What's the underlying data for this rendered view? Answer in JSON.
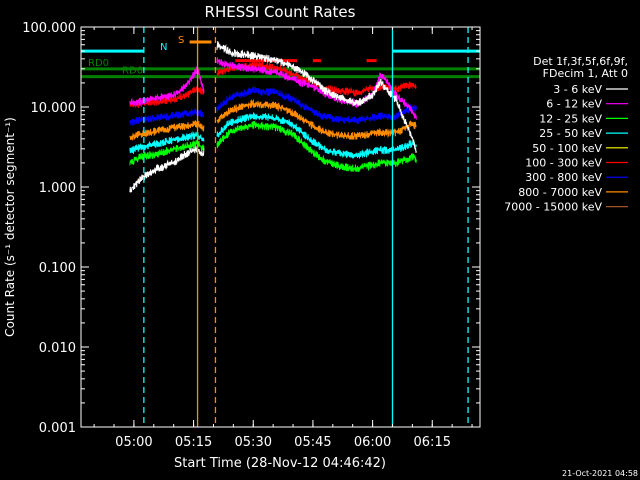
{
  "chart_data": {
    "type": "line",
    "title": "RHESSI Count Rates",
    "xlabel": "Start Time (28-Nov-12 04:46:42)",
    "ylabel": "Count Rate (s⁻¹ detector segment⁻¹)",
    "xlim": [
      "04:46:42",
      "06:27:00"
    ],
    "ylim": [
      0.001,
      100
    ],
    "yscale": "log",
    "xticks": [
      "05:00",
      "05:15",
      "05:30",
      "05:45",
      "06:00",
      "06:15"
    ],
    "yticks": [
      "0.001",
      "0.010",
      "0.100",
      "1.000",
      "10.000",
      "100.000"
    ],
    "legend_title": [
      "Det 1f,3f,5f,6f,9f,",
      "FDecim 1, Att 0"
    ],
    "legend_position": "right",
    "series": [
      {
        "name": "3 - 6 keV",
        "color": "#ffffff",
        "x": [
          "04:59:00",
          "05:02:00",
          "05:06:00",
          "05:10:00",
          "05:13:00",
          "05:16:00",
          "05:17:30",
          "05:21:00",
          "05:24:00",
          "05:30:00",
          "05:36:00",
          "05:40:00",
          "05:44:00",
          "05:48:00",
          "05:52:00",
          "05:56:00",
          "06:00:00",
          "06:02:00",
          "06:06:00",
          "06:10:00",
          "06:11:00"
        ],
        "y": [
          0.9,
          1.3,
          1.7,
          2.0,
          2.6,
          3.0,
          2.5,
          62,
          48,
          44,
          38,
          32,
          24,
          16,
          13,
          11,
          14,
          21,
          12,
          4,
          2.8
        ]
      },
      {
        "name": "6 - 12 keV",
        "color": "#ff00ff",
        "x": [
          "04:59:00",
          "05:02:00",
          "05:06:00",
          "05:10:00",
          "05:13:00",
          "05:16:00",
          "05:17:30",
          "05:21:00",
          "05:24:00",
          "05:30:00",
          "05:36:00",
          "05:40:00",
          "05:44:00",
          "05:48:00",
          "05:52:00",
          "05:56:00",
          "06:00:00",
          "06:02:00",
          "06:06:00",
          "06:10:00",
          "06:11:00"
        ],
        "y": [
          11,
          12,
          13,
          14,
          18,
          30,
          16,
          38,
          33,
          30,
          27,
          22,
          19,
          15,
          12,
          11,
          14,
          26,
          14,
          9,
          7
        ]
      },
      {
        "name": "12 - 25 keV",
        "color": "#00ff00",
        "x": [
          "04:59:00",
          "05:02:00",
          "05:06:00",
          "05:10:00",
          "05:13:00",
          "05:16:00",
          "05:17:30",
          "05:21:00",
          "05:24:00",
          "05:30:00",
          "05:36:00",
          "05:40:00",
          "05:44:00",
          "05:48:00",
          "05:52:00",
          "05:56:00",
          "06:00:00",
          "06:02:00",
          "06:06:00",
          "06:10:00",
          "06:11:00"
        ],
        "y": [
          2.0,
          2.4,
          2.6,
          3.0,
          3.2,
          3.5,
          3.0,
          3.4,
          4.8,
          6.0,
          5.5,
          4.5,
          3.0,
          2.1,
          1.8,
          1.7,
          1.9,
          2.0,
          2.0,
          2.4,
          2.2
        ]
      },
      {
        "name": "25 - 50 keV",
        "color": "#00ffff",
        "x": [
          "04:59:00",
          "05:02:00",
          "05:06:00",
          "05:10:00",
          "05:13:00",
          "05:16:00",
          "05:17:30",
          "05:21:00",
          "05:24:00",
          "05:30:00",
          "05:36:00",
          "05:40:00",
          "05:44:00",
          "05:48:00",
          "05:52:00",
          "05:56:00",
          "06:00:00",
          "06:02:00",
          "06:06:00",
          "06:10:00",
          "06:11:00"
        ],
        "y": [
          2.8,
          3.2,
          3.5,
          3.9,
          4.2,
          4.4,
          3.9,
          4.5,
          6.3,
          7.8,
          7.2,
          6.0,
          4.0,
          2.9,
          2.6,
          2.5,
          2.8,
          2.9,
          2.9,
          3.5,
          3.2
        ]
      },
      {
        "name": "50 - 100 keV",
        "color": "#ffff00",
        "x": [],
        "y": []
      },
      {
        "name": "100 - 300 keV",
        "color": "#ff0000",
        "x": [
          "04:59:00",
          "05:02:00",
          "05:06:00",
          "05:10:00",
          "05:13:00",
          "05:16:00",
          "05:17:30",
          "05:21:00",
          "05:24:00",
          "05:30:00",
          "05:36:00",
          "05:40:00",
          "05:44:00",
          "05:48:00",
          "05:52:00",
          "05:56:00",
          "06:00:00",
          "06:02:00",
          "06:06:00",
          "06:10:00",
          "06:11:00"
        ],
        "y": [
          10.5,
          11,
          11.5,
          12.5,
          14,
          17,
          15,
          26,
          30,
          34,
          31,
          26,
          21,
          17,
          16,
          15,
          17,
          18,
          17,
          19,
          18
        ]
      },
      {
        "name": "300 - 800 keV",
        "color": "#0000ff",
        "x": [
          "04:59:00",
          "05:02:00",
          "05:06:00",
          "05:10:00",
          "05:13:00",
          "05:16:00",
          "05:17:30",
          "05:21:00",
          "05:24:00",
          "05:30:00",
          "05:36:00",
          "05:40:00",
          "05:44:00",
          "05:48:00",
          "05:52:00",
          "05:56:00",
          "06:00:00",
          "06:02:00",
          "06:06:00",
          "06:10:00",
          "06:11:00"
        ],
        "y": [
          6.5,
          7.0,
          7.3,
          7.8,
          8.2,
          8.6,
          8.0,
          9.5,
          13,
          16,
          15,
          12.5,
          9.5,
          7.5,
          7.0,
          6.8,
          7.3,
          7.6,
          7.6,
          10,
          9.2
        ]
      },
      {
        "name": "800 - 7000 keV",
        "color": "#ff8c00",
        "x": [
          "04:59:00",
          "05:02:00",
          "05:06:00",
          "05:10:00",
          "05:13:00",
          "05:16:00",
          "05:17:30",
          "05:21:00",
          "05:24:00",
          "05:30:00",
          "05:36:00",
          "05:40:00",
          "05:44:00",
          "05:48:00",
          "05:52:00",
          "05:56:00",
          "06:00:00",
          "06:02:00",
          "06:06:00",
          "06:10:00",
          "06:11:00"
        ],
        "y": [
          4.2,
          4.6,
          5.0,
          5.5,
          5.8,
          6.2,
          5.6,
          6.8,
          9.0,
          11,
          10.3,
          8.5,
          6.3,
          4.8,
          4.4,
          4.3,
          4.7,
          4.8,
          4.8,
          6.2,
          5.7
        ]
      },
      {
        "name": "7000 - 15000 keV",
        "color": "#a0522d",
        "x": [],
        "y": []
      }
    ],
    "attenuator_label": "S",
    "attenuator_bar": {
      "start": "05:14:00",
      "end": "05:19:30",
      "value": 65
    },
    "attenuator_markers": [
      {
        "start": "05:25:30",
        "end": "05:41:00",
        "value": 38
      },
      {
        "start": "05:45:00",
        "end": "05:47:00",
        "value": 38
      },
      {
        "start": "05:58:30",
        "end": "06:01:00",
        "value": 38
      }
    ],
    "decimation_levels": [
      {
        "label": "RD0",
        "start": "04:46:42",
        "end": "06:27:00",
        "value": 30
      },
      {
        "label": "RD6",
        "start": "04:46:42",
        "end": "06:27:00",
        "value": 24
      }
    ],
    "night_label": "N",
    "night_level": 50,
    "night_intervals": [
      {
        "start": "04:46:42",
        "end": "05:02:30"
      },
      {
        "start": "06:05:00",
        "end": "06:27:00"
      }
    ],
    "saa_intervals": [
      {
        "start": "05:13:30",
        "end": "05:20:30"
      }
    ],
    "vertical_markers": [
      {
        "time": "05:02:30",
        "color": "#00ffff",
        "style": "dashed"
      },
      {
        "time": "06:05:00",
        "color": "#00ffff",
        "style": "solid"
      },
      {
        "time": "06:24:00",
        "color": "#00ffff",
        "style": "dashed"
      },
      {
        "time": "05:16:00",
        "color": "#ff8c00",
        "style": "solid"
      },
      {
        "time": "05:20:30",
        "color": "#ff8c00",
        "style": "dashed"
      }
    ],
    "footer_timestamp": "21-Oct-2021 04:58"
  }
}
